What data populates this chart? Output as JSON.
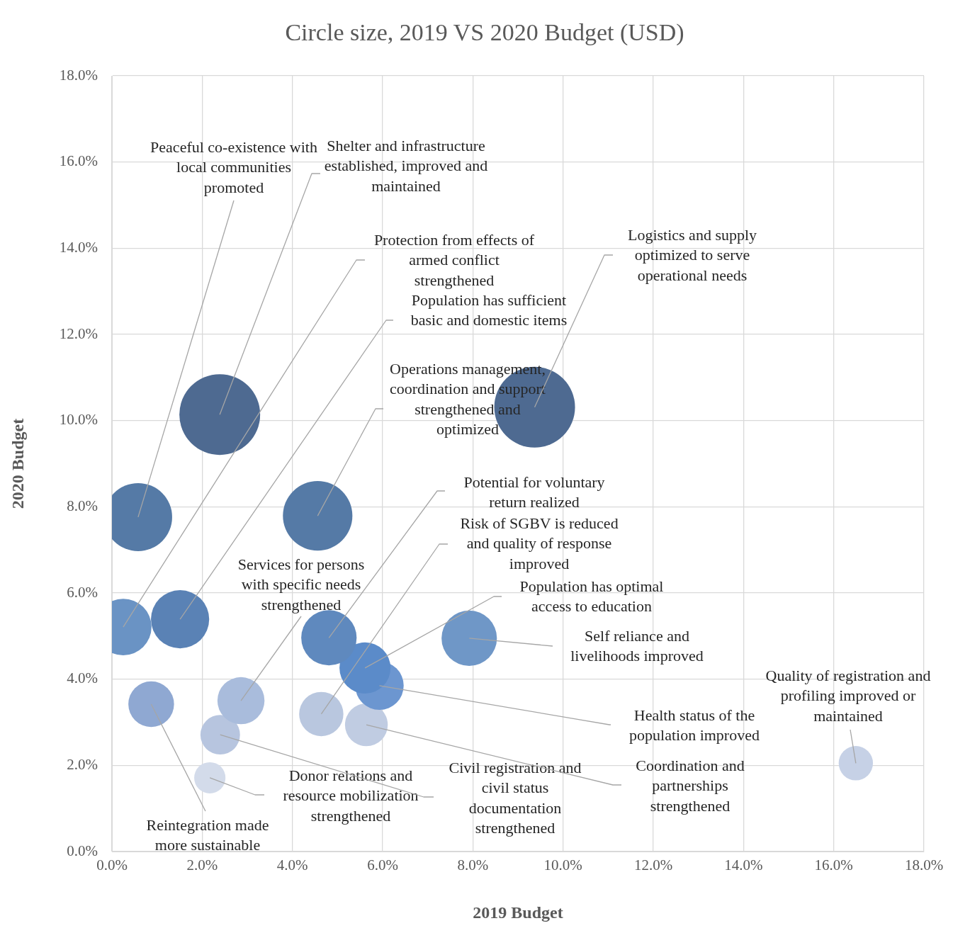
{
  "chart_data": {
    "type": "bubble",
    "title": "Circle size, 2019 VS 2020 Budget (USD)",
    "xlabel": "2019 Budget",
    "ylabel": "2020 Budget",
    "xlim": [
      0,
      18
    ],
    "ylim": [
      0,
      18
    ],
    "xticks": [
      {
        "value": 0,
        "label": "0.0%"
      },
      {
        "value": 2,
        "label": "2.0%"
      },
      {
        "value": 4,
        "label": "4.0%"
      },
      {
        "value": 6,
        "label": "6.0%"
      },
      {
        "value": 8,
        "label": "8.0%"
      },
      {
        "value": 10,
        "label": "10.0%"
      },
      {
        "value": 12,
        "label": "12.0%"
      },
      {
        "value": 14,
        "label": "14.0%"
      },
      {
        "value": 16,
        "label": "16.0%"
      },
      {
        "value": 18,
        "label": "18.0%"
      }
    ],
    "yticks": [
      {
        "value": 0,
        "label": "0.0%"
      },
      {
        "value": 2,
        "label": "2.0%"
      },
      {
        "value": 4,
        "label": "4.0%"
      },
      {
        "value": 6,
        "label": "6.0%"
      },
      {
        "value": 8,
        "label": "8.0%"
      },
      {
        "value": 10,
        "label": "10.0%"
      },
      {
        "value": 12,
        "label": "12.0%"
      },
      {
        "value": 14,
        "label": "14.0%"
      },
      {
        "value": 16,
        "label": "16.0%"
      },
      {
        "value": 18,
        "label": "18.0%"
      }
    ],
    "grid": true,
    "legend": false,
    "series": [
      {
        "name": "Peaceful co-existence with local communities promoted",
        "color": "#557aa6",
        "x": [
          0.58
        ],
        "values": [
          7.76
        ],
        "sizes": [
          0.71
        ]
      },
      {
        "name": "Shelter and infrastructure established, improved and maintained",
        "color": "#4e6a91",
        "x": [
          2.39
        ],
        "values": [
          10.14
        ],
        "sizes": [
          1
        ]
      },
      {
        "name": "Protection from effects of armed conflict strengthened",
        "color": "#6a93c4",
        "x": [
          0.25
        ],
        "values": [
          5.21
        ],
        "sizes": [
          0.49
        ]
      },
      {
        "name": "Population has sufficient basic and domestic items",
        "color": "#5a82b5",
        "x": [
          1.51
        ],
        "values": [
          5.39
        ],
        "sizes": [
          0.52
        ]
      },
      {
        "name": "Operations management, coordination and support strengthened and optimized",
        "color": "#557aa6",
        "x": [
          4.56
        ],
        "values": [
          7.79
        ],
        "sizes": [
          0.74
        ]
      },
      {
        "name": "Logistics and supply optimized to serve operational needs",
        "color": "#4e6a91",
        "x": [
          9.37
        ],
        "values": [
          10.31
        ],
        "sizes": [
          1
        ]
      },
      {
        "name": "Potential for voluntary return realized",
        "color": "#5f89be",
        "x": [
          4.81
        ],
        "values": [
          4.96
        ],
        "sizes": [
          0.47
        ]
      },
      {
        "name": "Risk of SGBV is reduced and quality of response improved",
        "color": "#b9c7df",
        "x": [
          4.64
        ],
        "values": [
          3.19
        ],
        "sizes": [
          0.3
        ]
      },
      {
        "name": "Population has optimal access to education",
        "color": "#5b8bc9",
        "x": [
          5.61
        ],
        "values": [
          4.26
        ],
        "sizes": [
          0.4
        ]
      },
      {
        "name": "Self reliance and livelihoods improved",
        "color": "#6f97c7",
        "x": [
          7.92
        ],
        "values": [
          4.95
        ],
        "sizes": [
          0.47
        ]
      },
      {
        "name": "Health status of the population improved",
        "color": "#6c96d0",
        "x": [
          5.93
        ],
        "values": [
          3.85
        ],
        "sizes": [
          0.36
        ]
      },
      {
        "name": "Coordination and partnerships strengthened",
        "color": "#c0cce2",
        "x": [
          5.64
        ],
        "values": [
          2.94
        ],
        "sizes": [
          0.28
        ]
      },
      {
        "name": "Quality of registration and profiling improved or maintained",
        "color": "#c6d1e6",
        "x": [
          16.49
        ],
        "values": [
          2.05
        ],
        "sizes": [
          0.18
        ]
      },
      {
        "name": "Services for persons with specific needs strengthened",
        "color": "#a9bcdc",
        "x": [
          2.86
        ],
        "values": [
          3.5
        ],
        "sizes": [
          0.34
        ]
      },
      {
        "name": "Reintegration made more sustainable",
        "color": "#8fa8d2",
        "x": [
          0.87
        ],
        "values": [
          3.42
        ],
        "sizes": [
          0.32
        ]
      },
      {
        "name": "Donor relations and resource mobilization strengthened",
        "color": "#d3dbea",
        "x": [
          2.17
        ],
        "values": [
          1.71
        ],
        "sizes": [
          0.15
        ]
      },
      {
        "name": "Civil registration and civil status documentation strengthened",
        "color": "#b7c5df",
        "x": [
          2.4
        ],
        "values": [
          2.71
        ],
        "sizes": [
          0.24
        ]
      }
    ]
  }
}
